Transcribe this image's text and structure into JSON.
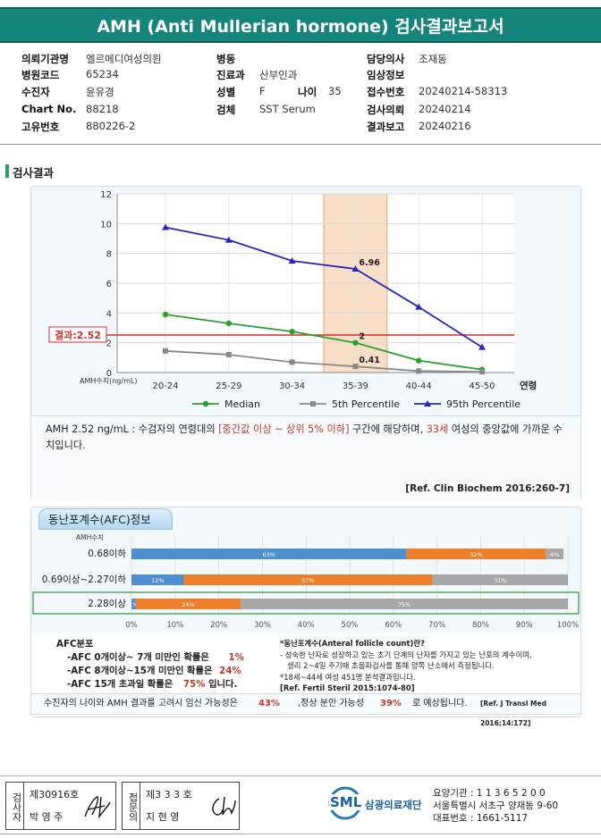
{
  "title": "AMH (Anti Mullerian hormone) 검사결과보고서",
  "info": {
    "institution_label": "의뢰기관명",
    "institution": "엘르메디여성의원",
    "hospital_code_label": "병원코드",
    "hospital_code": "65234",
    "patient_label": "수진자",
    "patient": "윤유경",
    "chart_no_label": "Chart No.",
    "chart_no": "88218",
    "unique_no_label": "고유번호",
    "unique_no": "880226-2",
    "ward_label": "병동",
    "ward": "",
    "dept_label": "진료과",
    "dept": "산부인과",
    "sex_label": "성별",
    "sex": "F",
    "age_label": "나이",
    "age": "35",
    "specimen_label": "검체",
    "specimen": "SST Serum",
    "doctor_label": "담당의사",
    "doctor": "조재동",
    "clinical_label": "임상정보",
    "clinical": "",
    "reception_label": "접수번호",
    "reception": "20240214-58313",
    "request_label": "검사의뢰",
    "request": "20240214",
    "report_label": "결과보고",
    "report": "20240216"
  },
  "section_title": "검사결과",
  "chart_data": [
    {
      "type": "line",
      "categories": [
        "20-24",
        "25-29",
        "30-34",
        "35-39",
        "40-44",
        "45-50"
      ],
      "x_axis_suffix": "연령",
      "y_axis_caption": "AMH수치(ng/mL)",
      "ylim": [
        0,
        12
      ],
      "yticks": [
        0,
        2,
        4,
        6,
        8,
        10,
        12
      ],
      "grid": true,
      "highlight_category": "35-39",
      "result_line": {
        "value": 2.52,
        "label": "결과:2.52"
      },
      "series": [
        {
          "name": "Median",
          "color": "#2ca02c",
          "marker": "circle",
          "values": [
            3.9,
            3.3,
            2.75,
            2.0,
            0.8,
            0.2
          ],
          "point_labels": {
            "3": "2"
          }
        },
        {
          "name": "5th Percentile",
          "color": "#8a8a8a",
          "marker": "square",
          "values": [
            1.45,
            1.2,
            0.7,
            0.41,
            0.1,
            0.05
          ],
          "point_labels": {
            "3": "0.41"
          }
        },
        {
          "name": "95th Percentile",
          "color": "#2626b8",
          "marker": "triangle",
          "values": [
            9.75,
            8.9,
            7.5,
            6.96,
            4.4,
            1.7
          ],
          "point_labels": {
            "3": "6.96"
          }
        }
      ],
      "legend_position": "bottom"
    },
    {
      "type": "bar",
      "orientation": "horizontal-stacked",
      "title": "동난포계수(AFC)정보",
      "row_caption": "AMH수치",
      "categories": [
        "0.68이하",
        "0.69이상~2.27이하",
        "2.28이상"
      ],
      "highlight_category": "2.28이상",
      "xlim": [
        0,
        100
      ],
      "xticks": [
        "0%",
        "10%",
        "20%",
        "30%",
        "40%",
        "50%",
        "60%",
        "70%",
        "80%",
        "90%",
        "100%"
      ],
      "series": [
        {
          "name": "AFC 0개이상~7개 미만",
          "color": "#4f8fcf",
          "values": [
            63,
            12,
            1
          ]
        },
        {
          "name": "AFC 8개이상~15개 미만",
          "color": "#ee7f2b",
          "values": [
            32,
            57,
            24
          ]
        },
        {
          "name": "AFC 15개 초과",
          "color": "#a7a7a7",
          "values": [
            4,
            31,
            75
          ]
        }
      ]
    }
  ],
  "interpretation": {
    "part1": "AMH  2.52 ng/mL : 수검자의 연령대의 ",
    "range": "[중간값 이상 ~ 상위 5% 이하]",
    "part2": " 구간에 해당하며, ",
    "age": "33세",
    "part3": " 여성의 중앙값에 가까운 수치입니다.",
    "ref": "[Ref. Clin Biochem 2016:260-7]"
  },
  "afc": {
    "heading": "AFC분포",
    "rows": [
      {
        "text": "-AFC  0개이상~ 7개 미만인 확률은",
        "value": "1%"
      },
      {
        "text": "-AFC  8개이상~15개 미만인 확률은",
        "value": "24%"
      },
      {
        "text": "-AFC  15개 초과일 확률은",
        "value": "75%",
        "suffix": "입니다."
      }
    ],
    "note_title": "*동난포계수(Anteral follicle count)란?",
    "note_lines": [
      "- 성숙한 난자로 성장하고 있는 초기 단계의 난자를 가지고 있는 난포의 계수이며,",
      "  생리 2~4일 주기때 초음파검사를 통해 양쪽 난소에서 측정됩니다.",
      "*18세~44세 여성 451명 분석결과입니다.",
      "[Ref. Fertil Steril 2015:1074-80]"
    ]
  },
  "pregnancy": {
    "part1": "수진자의 나이와 AMH 결과를 고려시 임신 가능성은",
    "pct1": "43%",
    "part2": ",정상 분만 가능성",
    "pct2": "39%",
    "part3": "로 예상됩니다.",
    "ref": "[Ref. J Transl Med 2016;14:172]"
  },
  "footer": {
    "tester_vert": "검사자",
    "tester_no": "제30916호",
    "tester_name": "박 영 주",
    "confirm_vert": "접문의",
    "confirm_no": "제3 3 3 호",
    "confirm_name": "지 현 영",
    "org_abbr": "SML",
    "org_name": "삼광의료재단",
    "code": "요양기관 : 1 1 3 6 5 2 0 0",
    "address": "서울특별시 서초구 양재동 9-60",
    "phone": "대표번호 : 1661-5117"
  }
}
